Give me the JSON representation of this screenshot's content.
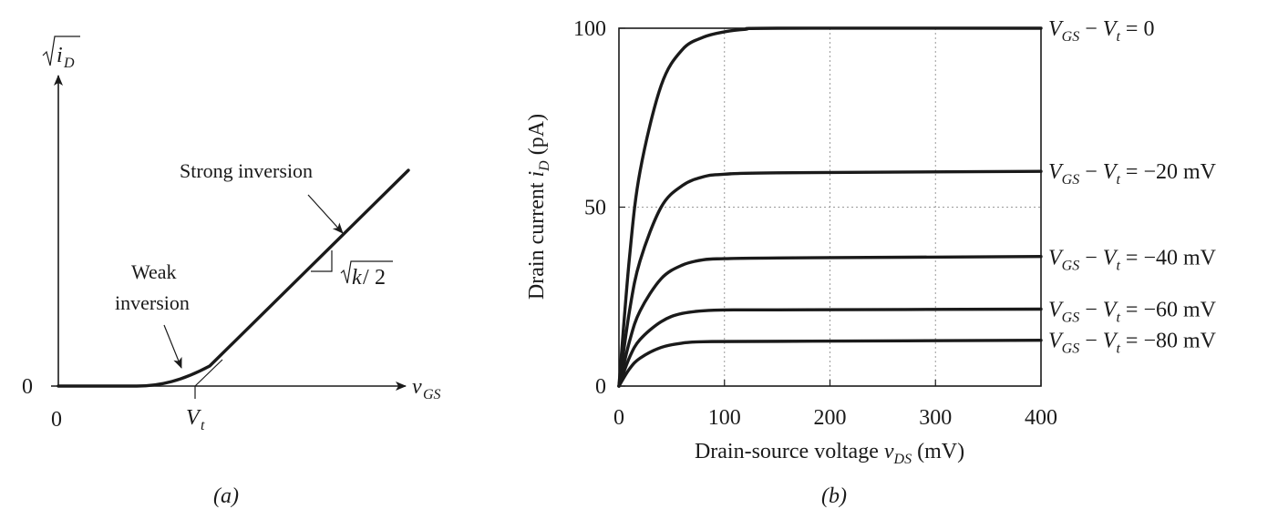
{
  "chart_data": [
    {
      "panel": "a",
      "type": "line",
      "caption": "(a)",
      "y_axis_label": "√iD",
      "x_axis_label": "vGS",
      "x_origin_label": "0",
      "y_origin_label": "0",
      "threshold_label": "Vt",
      "slope_label": "√k/2",
      "annotations": [
        {
          "id": "strong",
          "text": "Strong inversion"
        },
        {
          "id": "weak",
          "lines": [
            "Weak",
            "inversion"
          ]
        }
      ]
    },
    {
      "panel": "b",
      "type": "line",
      "caption": "(b)",
      "xlabel": "Drain-source voltage vDS (mV)",
      "ylabel": "Drain current iD (pA)",
      "xlim": [
        0,
        400
      ],
      "ylim": [
        0,
        100
      ],
      "x_ticks": [
        0,
        100,
        200,
        300,
        400
      ],
      "y_ticks": [
        0,
        50,
        100
      ],
      "grid": true,
      "series": [
        {
          "name": "VGS − Vt = 0",
          "sat_current": 100,
          "knee_vds": 150,
          "vds": [
            0,
            10,
            20,
            40,
            60,
            80,
            100,
            120,
            150,
            400
          ],
          "id": [
            0,
            36,
            60,
            84,
            94,
            97.5,
            99,
            99.7,
            100,
            100
          ]
        },
        {
          "name": "VGS − Vt = −20 mV",
          "sat_current": 60,
          "knee_vds": 100,
          "vds": [
            0,
            10,
            20,
            40,
            60,
            80,
            100,
            150,
            400
          ],
          "id": [
            0,
            21,
            35,
            50,
            56,
            58.5,
            59.2,
            59.6,
            60
          ]
        },
        {
          "name": "VGS − Vt = −40 mV",
          "sat_current": 36,
          "knee_vds": 100,
          "vds": [
            0,
            10,
            20,
            40,
            60,
            80,
            100,
            150,
            400
          ],
          "id": [
            0,
            12.5,
            21,
            30,
            33.8,
            35.3,
            35.6,
            35.8,
            36.2
          ]
        },
        {
          "name": "VGS − Vt = −60 mV",
          "sat_current": 21.5,
          "knee_vds": 90,
          "vds": [
            0,
            10,
            20,
            40,
            60,
            90,
            150,
            400
          ],
          "id": [
            0,
            8,
            13,
            18,
            20.3,
            21.2,
            21.3,
            21.5
          ]
        },
        {
          "name": "VGS − Vt = −80 mV",
          "sat_current": 12.8,
          "knee_vds": 80,
          "vds": [
            0,
            10,
            20,
            40,
            60,
            80,
            150,
            400
          ],
          "id": [
            0,
            4.8,
            7.8,
            10.8,
            12,
            12.4,
            12.5,
            12.8
          ]
        }
      ]
    }
  ]
}
